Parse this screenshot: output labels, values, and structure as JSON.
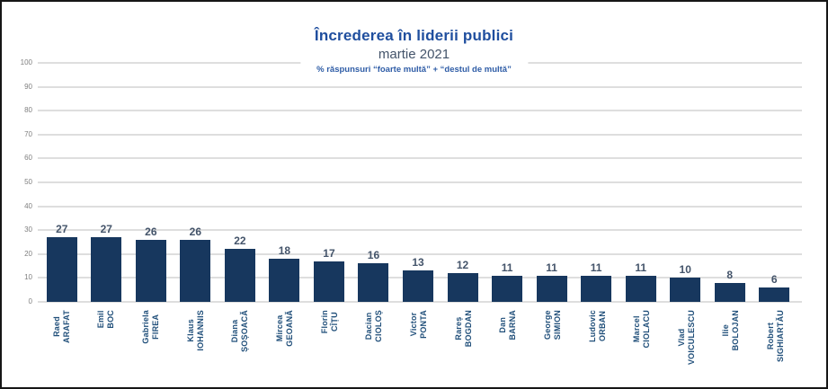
{
  "chart_data": {
    "type": "bar",
    "title": "Încrederea în liderii publici",
    "subtitle": "martie 2021",
    "note": "% răspunsuri “foarte multă” + “destul de multă”",
    "categories": [
      {
        "first": "Raed",
        "last": "ARAFAT"
      },
      {
        "first": "Emil",
        "last": "BOC"
      },
      {
        "first": "Gabriela",
        "last": "FIREA"
      },
      {
        "first": "Klaus",
        "last": "IOHANNIS"
      },
      {
        "first": "Diana",
        "last": "ȘOȘOACĂ"
      },
      {
        "first": "Mircea",
        "last": "GEOANĂ"
      },
      {
        "first": "Florin",
        "last": "CÎȚU"
      },
      {
        "first": "Dacian",
        "last": "CIOLOȘ"
      },
      {
        "first": "Victor",
        "last": "PONTA"
      },
      {
        "first": "Rareș",
        "last": "BOGDAN"
      },
      {
        "first": "Dan",
        "last": "BARNA"
      },
      {
        "first": "George",
        "last": "SIMION"
      },
      {
        "first": "Ludovic",
        "last": "ORBAN"
      },
      {
        "first": "Marcel",
        "last": "CIOLACU"
      },
      {
        "first": "Vlad",
        "last": "VOICULESCU"
      },
      {
        "first": "Ilie",
        "last": "BOLOJAN"
      },
      {
        "first": "Robert",
        "last": "SIGHIARTĂU"
      }
    ],
    "values": [
      27,
      27,
      26,
      26,
      22,
      18,
      17,
      16,
      13,
      12,
      11,
      11,
      11,
      11,
      10,
      8,
      6
    ],
    "xlabel": "",
    "ylabel": "",
    "ylim": [
      0,
      100
    ],
    "yticks": [
      0,
      10,
      20,
      30,
      40,
      50,
      60,
      70,
      80,
      90,
      100
    ],
    "grid": true,
    "legend": false,
    "bar_color": "#17375E",
    "value_label_color": "#44546A",
    "category_label_color": "#1F4E79",
    "title_color": "#1F4E9E",
    "gridline_color": "#DEDEDE"
  }
}
